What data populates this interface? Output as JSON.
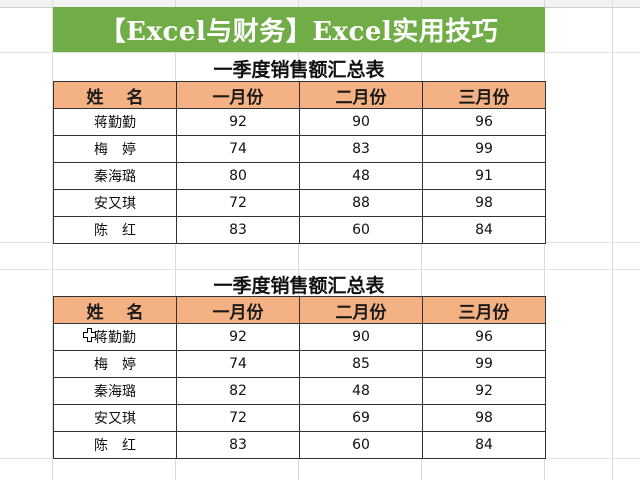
{
  "banner": {
    "text": "【Excel与财务】Excel实用技巧"
  },
  "tables": [
    {
      "title": "一季度销售额汇总表",
      "headers": [
        "姓　 名",
        "一月份",
        "二月份",
        "三月份"
      ],
      "rows": [
        [
          "蒋勤勤",
          "92",
          "90",
          "96"
        ],
        [
          "梅　婷",
          "74",
          "83",
          "99"
        ],
        [
          "秦海璐",
          "80",
          "48",
          "91"
        ],
        [
          "安又琪",
          "72",
          "88",
          "98"
        ],
        [
          "陈　红",
          "83",
          "60",
          "84"
        ]
      ]
    },
    {
      "title": "一季度销售额汇总表",
      "headers": [
        "姓　 名",
        "一月份",
        "二月份",
        "三月份"
      ],
      "rows": [
        [
          "蒋勤勤",
          "92",
          "90",
          "96"
        ],
        [
          "梅　婷",
          "74",
          "85",
          "99"
        ],
        [
          "秦海璐",
          "82",
          "48",
          "92"
        ],
        [
          "安又琪",
          "72",
          "69",
          "98"
        ],
        [
          "陈　红",
          "83",
          "60",
          "84"
        ]
      ]
    }
  ],
  "colors": {
    "banner_bg": "#70ad47",
    "header_bg": "#f4b183"
  }
}
